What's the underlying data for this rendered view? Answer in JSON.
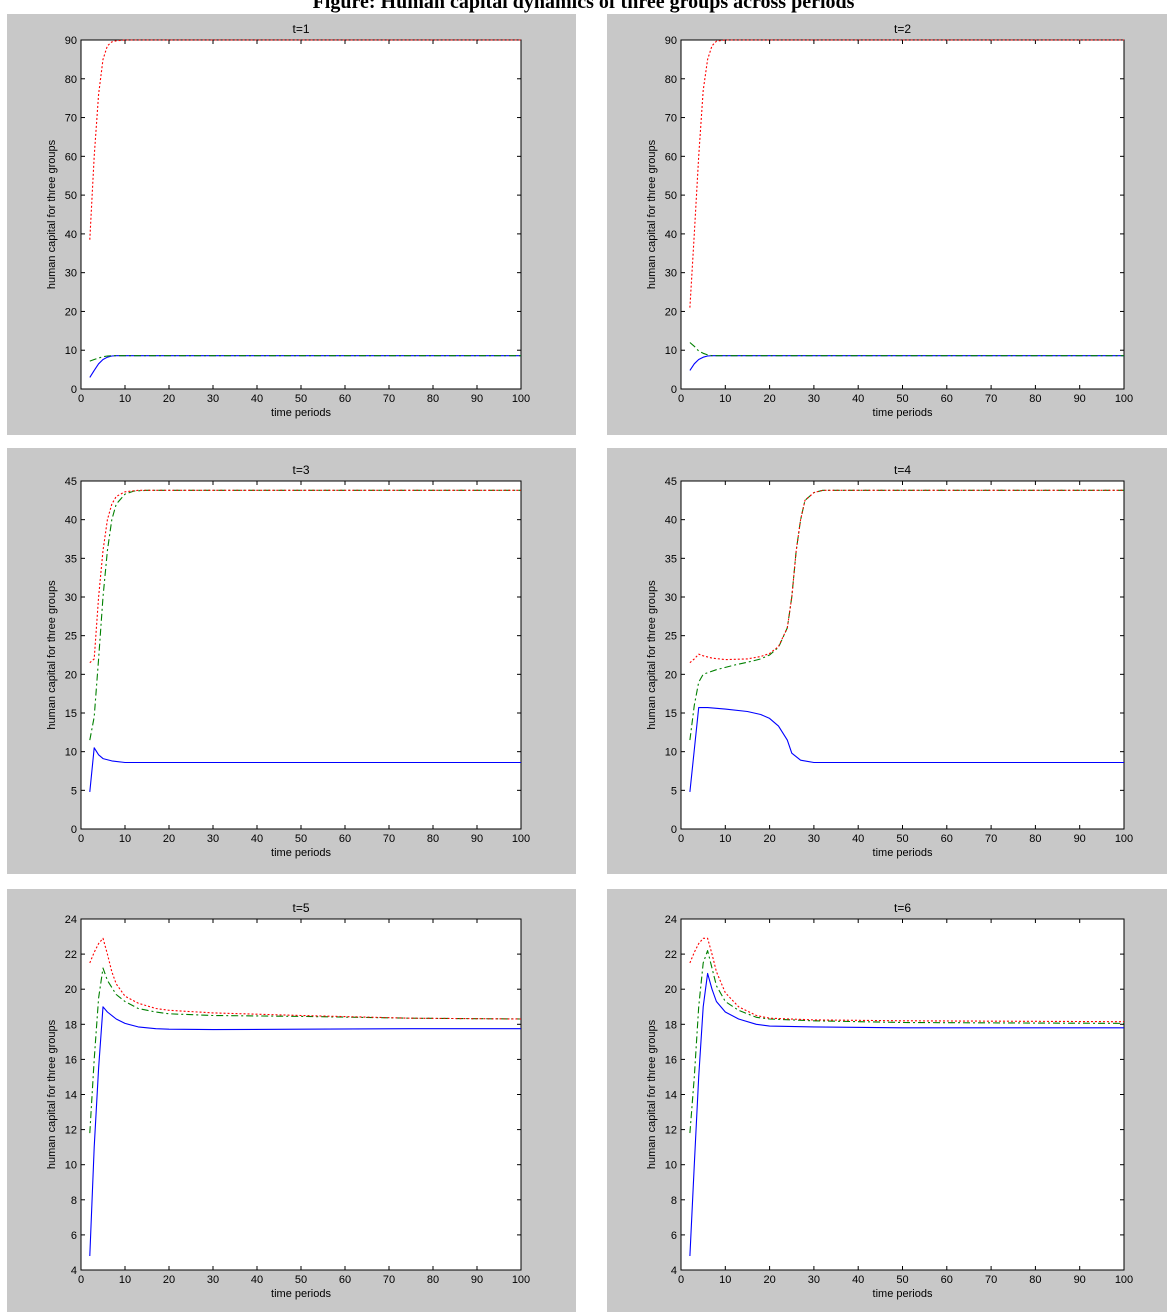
{
  "header_caption": "Figure: Human capital dynamics of three groups across periods",
  "colors": {
    "panel_bg": "#c8c8c8",
    "series_1": "#0000ff",
    "series_2": "#008000",
    "series_3": "#ff0000"
  },
  "chart_data": [
    {
      "type": "line",
      "title": "t=1",
      "xlabel": "time periods",
      "ylabel": "human capital for three groups",
      "xlim": [
        0,
        100
      ],
      "ylim": [
        0,
        90
      ],
      "xticks": [
        "0",
        "10",
        "20",
        "30",
        "40",
        "50",
        "60",
        "70",
        "80",
        "90",
        "100"
      ],
      "yticks": [
        "0",
        "10",
        "20",
        "30",
        "40",
        "50",
        "60",
        "70",
        "80",
        "90"
      ],
      "grid": false,
      "series": [
        {
          "style": "solid",
          "color": "#0000ff",
          "points": [
            [
              2,
              3
            ],
            [
              3,
              4.8
            ],
            [
              4,
              6.5
            ],
            [
              5,
              7.6
            ],
            [
              6,
              8.2
            ],
            [
              7,
              8.5
            ],
            [
              8,
              8.6
            ],
            [
              100,
              8.6
            ]
          ]
        },
        {
          "style": "dashdot",
          "color": "#008000",
          "points": [
            [
              2,
              7.2
            ],
            [
              3,
              7.6
            ],
            [
              4,
              8.0
            ],
            [
              5,
              8.3
            ],
            [
              6,
              8.5
            ],
            [
              7,
              8.6
            ],
            [
              100,
              8.6
            ]
          ]
        },
        {
          "style": "dotted",
          "color": "#ff0000",
          "points": [
            [
              2,
              38.5
            ],
            [
              3,
              60
            ],
            [
              4,
              76
            ],
            [
              5,
              85
            ],
            [
              6,
              88.5
            ],
            [
              7,
              89.5
            ],
            [
              8,
              89.8
            ],
            [
              10,
              90
            ],
            [
              100,
              90
            ]
          ]
        }
      ]
    },
    {
      "type": "line",
      "title": "t=2",
      "xlabel": "time periods",
      "ylabel": "human capital for three groups",
      "xlim": [
        0,
        100
      ],
      "ylim": [
        0,
        90
      ],
      "xticks": [
        "0",
        "10",
        "20",
        "30",
        "40",
        "50",
        "60",
        "70",
        "80",
        "90",
        "100"
      ],
      "yticks": [
        "0",
        "10",
        "20",
        "30",
        "40",
        "50",
        "60",
        "70",
        "80",
        "90"
      ],
      "grid": false,
      "series": [
        {
          "style": "solid",
          "color": "#0000ff",
          "points": [
            [
              2,
              4.8
            ],
            [
              3,
              6.5
            ],
            [
              4,
              7.6
            ],
            [
              5,
              8.2
            ],
            [
              6,
              8.5
            ],
            [
              7,
              8.6
            ],
            [
              100,
              8.6
            ]
          ]
        },
        {
          "style": "dashdot",
          "color": "#008000",
          "points": [
            [
              2,
              12
            ],
            [
              3,
              11
            ],
            [
              4,
              9.8
            ],
            [
              5,
              9.2
            ],
            [
              6,
              8.8
            ],
            [
              7,
              8.6
            ],
            [
              100,
              8.6
            ]
          ]
        },
        {
          "style": "dotted",
          "color": "#ff0000",
          "points": [
            [
              2,
              21
            ],
            [
              3,
              40
            ],
            [
              4,
              60
            ],
            [
              5,
              77
            ],
            [
              6,
              85
            ],
            [
              7,
              88.5
            ],
            [
              8,
              89.7
            ],
            [
              10,
              90
            ],
            [
              100,
              90
            ]
          ]
        }
      ]
    },
    {
      "type": "line",
      "title": "t=3",
      "xlabel": "time periods",
      "ylabel": "human capital for three groups",
      "xlim": [
        0,
        100
      ],
      "ylim": [
        0,
        45
      ],
      "xticks": [
        "0",
        "10",
        "20",
        "30",
        "40",
        "50",
        "60",
        "70",
        "80",
        "90",
        "100"
      ],
      "yticks": [
        "0",
        "5",
        "10",
        "15",
        "20",
        "25",
        "30",
        "35",
        "40",
        "45"
      ],
      "grid": false,
      "series": [
        {
          "style": "solid",
          "color": "#0000ff",
          "points": [
            [
              2,
              4.8
            ],
            [
              3,
              10.5
            ],
            [
              4,
              9.6
            ],
            [
              5,
              9.1
            ],
            [
              7,
              8.8
            ],
            [
              10,
              8.6
            ],
            [
              100,
              8.6
            ]
          ]
        },
        {
          "style": "dashdot",
          "color": "#008000",
          "points": [
            [
              2,
              11.5
            ],
            [
              3,
              14.5
            ],
            [
              4,
              22
            ],
            [
              5,
              30
            ],
            [
              6,
              36
            ],
            [
              7,
              40
            ],
            [
              8,
              42
            ],
            [
              10,
              43.3
            ],
            [
              12,
              43.7
            ],
            [
              15,
              43.8
            ],
            [
              100,
              43.8
            ]
          ]
        },
        {
          "style": "dotted",
          "color": "#ff0000",
          "points": [
            [
              2,
              21.5
            ],
            [
              3,
              22
            ],
            [
              4,
              30
            ],
            [
              5,
              36
            ],
            [
              6,
              40
            ],
            [
              7,
              42
            ],
            [
              8,
              43
            ],
            [
              10,
              43.6
            ],
            [
              13,
              43.8
            ],
            [
              100,
              43.8
            ]
          ]
        }
      ]
    },
    {
      "type": "line",
      "title": "t=4",
      "xlabel": "time periods",
      "ylabel": "human capital for three groups",
      "xlim": [
        0,
        100
      ],
      "ylim": [
        0,
        45
      ],
      "xticks": [
        "0",
        "10",
        "20",
        "30",
        "40",
        "50",
        "60",
        "70",
        "80",
        "90",
        "100"
      ],
      "yticks": [
        "0",
        "5",
        "10",
        "15",
        "20",
        "25",
        "30",
        "35",
        "40",
        "45"
      ],
      "grid": false,
      "series": [
        {
          "style": "solid",
          "color": "#0000ff",
          "points": [
            [
              2,
              4.8
            ],
            [
              4,
              15.7
            ],
            [
              6,
              15.7
            ],
            [
              10,
              15.5
            ],
            [
              15,
              15.2
            ],
            [
              18,
              14.8
            ],
            [
              20,
              14.3
            ],
            [
              22,
              13.3
            ],
            [
              24,
              11.5
            ],
            [
              25,
              9.8
            ],
            [
              27,
              8.9
            ],
            [
              30,
              8.6
            ],
            [
              100,
              8.6
            ]
          ]
        },
        {
          "style": "dashdot",
          "color": "#008000",
          "points": [
            [
              2,
              11.5
            ],
            [
              3,
              16
            ],
            [
              4,
              19
            ],
            [
              5,
              20
            ],
            [
              8,
              20.6
            ],
            [
              12,
              21.2
            ],
            [
              16,
              21.7
            ],
            [
              18,
              22
            ],
            [
              20,
              22.5
            ],
            [
              22,
              23.5
            ],
            [
              24,
              26
            ],
            [
              25,
              30
            ],
            [
              26,
              36
            ],
            [
              27,
              40
            ],
            [
              28,
              42.5
            ],
            [
              30,
              43.5
            ],
            [
              32,
              43.8
            ],
            [
              100,
              43.8
            ]
          ]
        },
        {
          "style": "dotted",
          "color": "#ff0000",
          "points": [
            [
              2,
              21.5
            ],
            [
              3,
              22
            ],
            [
              4,
              22.6
            ],
            [
              5,
              22.4
            ],
            [
              7,
              22.1
            ],
            [
              10,
              21.9
            ],
            [
              15,
              22
            ],
            [
              18,
              22.3
            ],
            [
              20,
              22.7
            ],
            [
              22,
              23.6
            ],
            [
              24,
              26
            ],
            [
              25,
              30
            ],
            [
              26,
              36
            ],
            [
              27,
              40
            ],
            [
              28,
              42.5
            ],
            [
              30,
              43.5
            ],
            [
              32,
              43.8
            ],
            [
              100,
              43.8
            ]
          ]
        }
      ]
    },
    {
      "type": "line",
      "title": "t=5",
      "xlabel": "time periods",
      "ylabel": "human capital for three groups",
      "xlim": [
        0,
        100
      ],
      "ylim": [
        4,
        24
      ],
      "xticks": [
        "0",
        "10",
        "20",
        "30",
        "40",
        "50",
        "60",
        "70",
        "80",
        "90",
        "100"
      ],
      "yticks": [
        "4",
        "6",
        "8",
        "10",
        "12",
        "14",
        "16",
        "18",
        "20",
        "22",
        "24"
      ],
      "grid": false,
      "series": [
        {
          "style": "solid",
          "color": "#0000ff",
          "points": [
            [
              2,
              4.8
            ],
            [
              3,
              11
            ],
            [
              4,
              15.5
            ],
            [
              5,
              19
            ],
            [
              6,
              18.7
            ],
            [
              8,
              18.3
            ],
            [
              10,
              18.05
            ],
            [
              13,
              17.85
            ],
            [
              17,
              17.75
            ],
            [
              20,
              17.72
            ],
            [
              30,
              17.7
            ],
            [
              50,
              17.72
            ],
            [
              75,
              17.75
            ],
            [
              100,
              17.75
            ]
          ]
        },
        {
          "style": "dashdot",
          "color": "#008000",
          "points": [
            [
              2,
              11.8
            ],
            [
              3,
              16
            ],
            [
              4,
              19.5
            ],
            [
              5,
              21.2
            ],
            [
              6,
              20.5
            ],
            [
              8,
              19.7
            ],
            [
              10,
              19.3
            ],
            [
              13,
              18.9
            ],
            [
              17,
              18.7
            ],
            [
              20,
              18.6
            ],
            [
              30,
              18.5
            ],
            [
              50,
              18.45
            ],
            [
              75,
              18.35
            ],
            [
              100,
              18.3
            ]
          ]
        },
        {
          "style": "dotted",
          "color": "#ff0000",
          "points": [
            [
              2,
              21.5
            ],
            [
              3,
              22.1
            ],
            [
              4,
              22.6
            ],
            [
              5,
              22.9
            ],
            [
              6,
              22
            ],
            [
              7,
              21
            ],
            [
              8,
              20.3
            ],
            [
              10,
              19.6
            ],
            [
              13,
              19.2
            ],
            [
              17,
              18.9
            ],
            [
              20,
              18.8
            ],
            [
              30,
              18.65
            ],
            [
              50,
              18.5
            ],
            [
              75,
              18.35
            ],
            [
              100,
              18.3
            ]
          ]
        }
      ]
    },
    {
      "type": "line",
      "title": "t=6",
      "xlabel": "time periods",
      "ylabel": "human capital for three groups",
      "xlim": [
        0,
        100
      ],
      "ylim": [
        4,
        24
      ],
      "xticks": [
        "0",
        "10",
        "20",
        "30",
        "40",
        "50",
        "60",
        "70",
        "80",
        "90",
        "100"
      ],
      "yticks": [
        "4",
        "6",
        "8",
        "10",
        "12",
        "14",
        "16",
        "18",
        "20",
        "22",
        "24"
      ],
      "grid": false,
      "series": [
        {
          "style": "solid",
          "color": "#0000ff",
          "points": [
            [
              2,
              4.8
            ],
            [
              3,
              10
            ],
            [
              4,
              15
            ],
            [
              5,
              19
            ],
            [
              6,
              20.9
            ],
            [
              7,
              20
            ],
            [
              8,
              19.3
            ],
            [
              10,
              18.7
            ],
            [
              13,
              18.3
            ],
            [
              17,
              18
            ],
            [
              20,
              17.9
            ],
            [
              30,
              17.85
            ],
            [
              50,
              17.8
            ],
            [
              100,
              17.8
            ]
          ]
        },
        {
          "style": "dashdot",
          "color": "#008000",
          "points": [
            [
              2,
              11.8
            ],
            [
              3,
              15
            ],
            [
              4,
              19
            ],
            [
              5,
              21.5
            ],
            [
              6,
              22.2
            ],
            [
              7,
              21.2
            ],
            [
              8,
              20.2
            ],
            [
              10,
              19.3
            ],
            [
              13,
              18.8
            ],
            [
              17,
              18.4
            ],
            [
              20,
              18.3
            ],
            [
              30,
              18.2
            ],
            [
              50,
              18.1
            ],
            [
              100,
              18.05
            ]
          ]
        },
        {
          "style": "dotted",
          "color": "#ff0000",
          "points": [
            [
              2,
              21.5
            ],
            [
              3,
              22.1
            ],
            [
              4,
              22.6
            ],
            [
              5,
              22.9
            ],
            [
              6,
              22.9
            ],
            [
              7,
              22
            ],
            [
              8,
              21
            ],
            [
              10,
              19.8
            ],
            [
              13,
              19
            ],
            [
              17,
              18.5
            ],
            [
              20,
              18.35
            ],
            [
              30,
              18.25
            ],
            [
              50,
              18.2
            ],
            [
              100,
              18.15
            ]
          ]
        }
      ]
    }
  ]
}
